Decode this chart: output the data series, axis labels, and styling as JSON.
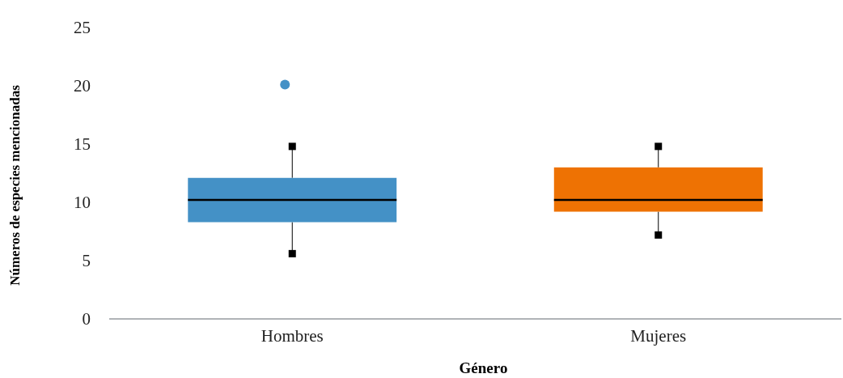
{
  "chart_data": {
    "type": "box",
    "xlabel": "Género",
    "ylabel": "Números de especies mencionadas",
    "categories": [
      "Hombres",
      "Mujeres"
    ],
    "colors": [
      "#4491c6",
      "#ee7203"
    ],
    "boxes": [
      {
        "low": 5.6,
        "q1": 8.3,
        "median": 10.2,
        "q3": 12.1,
        "high": 14.8,
        "outliers": [
          20.1
        ]
      },
      {
        "low": 7.2,
        "q1": 9.2,
        "median": 10.2,
        "q3": 13.0,
        "high": 14.8
      }
    ],
    "ylim": [
      0,
      25
    ],
    "yticks": [
      0,
      5,
      10,
      15,
      20,
      25
    ],
    "grid": false,
    "marker": "square"
  }
}
